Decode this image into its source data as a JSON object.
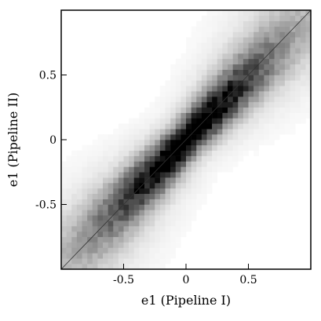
{
  "chart_data": {
    "type": "heatmap",
    "title": "",
    "xlabel": "e1 (Pipeline I)",
    "ylabel": "e1 (Pipeline II)",
    "xlim": [
      -1,
      1
    ],
    "ylim": [
      -1,
      1
    ],
    "xticks": [
      {
        "value": -0.5,
        "label": "-0.5"
      },
      {
        "value": 0,
        "label": "0"
      },
      {
        "value": 0.5,
        "label": "0.5"
      }
    ],
    "yticks": [
      {
        "value": -0.5,
        "label": "-0.5"
      },
      {
        "value": 0,
        "label": "0"
      },
      {
        "value": 0.5,
        "label": "0.5"
      }
    ],
    "diagonal_line": {
      "from": [
        -1,
        -1
      ],
      "to": [
        1,
        1
      ]
    },
    "colormap": "gray_reversed",
    "density": {
      "description_free": true,
      "bins": 48,
      "center_peak": 1.0,
      "along_diagonal_falloff": 0.7,
      "perpendicular_width": 0.085
    },
    "grid": false,
    "legend": "none",
    "colors": {
      "background": "#ffffff",
      "frame": "#000000",
      "line": "#333333"
    }
  }
}
